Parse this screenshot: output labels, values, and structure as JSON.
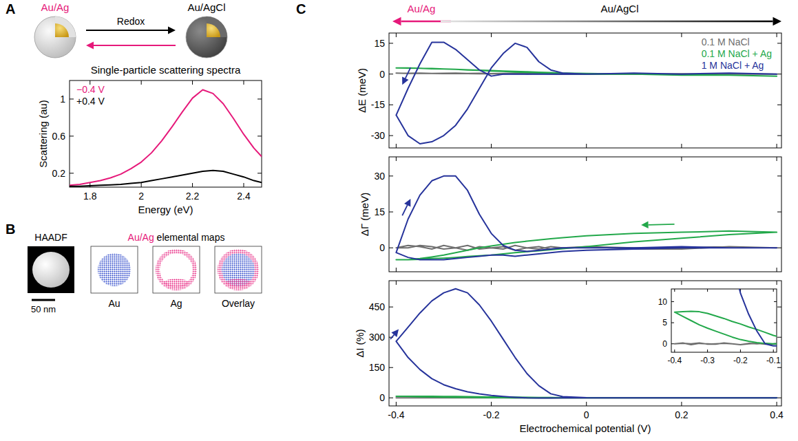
{
  "panel_labels": [
    "A",
    "B",
    "C"
  ],
  "schematic": {
    "left_label": "Au/Ag",
    "right_label": "Au/AgCl",
    "arrow_label": "Redox"
  },
  "micrographs": {
    "title": "HAADF",
    "maps_title": "Au/Ag elemental maps",
    "map_labels": [
      "Au",
      "Ag",
      "Overlay"
    ],
    "scale_bar": "50 nm"
  },
  "sweep_direction": {
    "left": "Au/Ag",
    "right": "Au/AgCl"
  },
  "chart_data": [
    {
      "type": "line",
      "title": "Single-particle scattering spectra",
      "xlabel": "Energy (eV)",
      "ylabel": "Scattering (au)",
      "x": [
        1.72,
        1.76,
        1.8,
        1.84,
        1.88,
        1.92,
        1.96,
        2,
        2.04,
        2.08,
        2.12,
        2.16,
        2.2,
        2.24,
        2.28,
        2.32,
        2.36,
        2.4,
        2.44,
        2.47
      ],
      "series": [
        {
          "name": "−0.4 V",
          "color": "#e6197a",
          "values": [
            0.07,
            0.08,
            0.1,
            0.12,
            0.15,
            0.19,
            0.25,
            0.32,
            0.42,
            0.55,
            0.7,
            0.86,
            1.01,
            1.1,
            1.06,
            0.95,
            0.79,
            0.62,
            0.47,
            0.38
          ]
        },
        {
          "name": "+0.4 V",
          "color": "#000000",
          "values": [
            0.06,
            0.06,
            0.065,
            0.07,
            0.075,
            0.08,
            0.09,
            0.1,
            0.12,
            0.14,
            0.16,
            0.18,
            0.2,
            0.22,
            0.23,
            0.22,
            0.19,
            0.16,
            0.12,
            0.1
          ]
        }
      ],
      "xlim": [
        1.72,
        2.47
      ],
      "ylim": [
        0.05,
        1.2
      ],
      "xticks": [
        1.8,
        2,
        2.2,
        2.4
      ],
      "yticks": [
        0.2,
        0.6,
        1
      ],
      "legend": "upper left"
    },
    {
      "type": "line",
      "ylabel": "ΔE (meV)",
      "x": [
        -0.4,
        -0.375,
        -0.35,
        -0.325,
        -0.3,
        -0.275,
        -0.25,
        -0.225,
        -0.2,
        -0.175,
        -0.15,
        -0.125,
        -0.1,
        -0.075,
        -0.05,
        0,
        0.1,
        0.2,
        0.3,
        0.4,
        0.3,
        0.2,
        0.1,
        0,
        -0.05,
        -0.075,
        -0.1,
        -0.125,
        -0.15,
        -0.175,
        -0.2,
        -0.225,
        -0.25,
        -0.275,
        -0.3,
        -0.325,
        -0.35,
        -0.375,
        -0.4
      ],
      "series": [
        {
          "name": "0.1 M NaCl",
          "color": "#6e6e6e",
          "values": [
            0.5,
            0.4,
            0.5,
            0.3,
            0.4,
            0.5,
            0.3,
            0.4,
            0.2,
            0.3,
            0.4,
            0.3,
            0.2,
            0.3,
            0.2,
            0.2,
            0.1,
            0,
            0.1,
            0,
            0,
            0.1,
            0,
            0,
            -0.1,
            0,
            0.1,
            0,
            0.1,
            0,
            0.2,
            0.1,
            0.2,
            0.3,
            0.2,
            0.3,
            0.4,
            0.3,
            0.5
          ]
        },
        {
          "name": "0.1 M NaCl + Ag",
          "color": "#22a84a",
          "values": [
            3,
            3,
            2.8,
            2.6,
            2.5,
            2.3,
            2,
            1.8,
            1.5,
            1.3,
            1,
            0.8,
            0.6,
            0.4,
            0.2,
            0,
            0,
            -0.5,
            -0.5,
            -1,
            -0.5,
            -0.3,
            0,
            0.3,
            0.5,
            0.7,
            0.9,
            1.1,
            1.3,
            1.5,
            1.7,
            1.9,
            2.1,
            2.3,
            2.5,
            2.7,
            2.8,
            2.9,
            3
          ]
        },
        {
          "name": "1 M NaCl + Ag",
          "color": "#26339b",
          "values": [
            -20,
            -30,
            -34,
            -33,
            -30,
            -25,
            -17,
            -7,
            3,
            10,
            15,
            13,
            6,
            2,
            0.5,
            0,
            0.5,
            0,
            0.5,
            0,
            0.5,
            0,
            0.5,
            0,
            0,
            0,
            0,
            0,
            0,
            0,
            -1,
            2,
            7,
            12,
            15.5,
            15.5,
            5,
            -7,
            -20
          ]
        }
      ],
      "xlim": [
        -0.415,
        0.41
      ],
      "ylim": [
        -36,
        20
      ],
      "xticks": [
        -0.4,
        -0.2,
        0,
        0.2,
        0.4
      ],
      "yticks": [
        -30,
        -15,
        0,
        15
      ],
      "legend": "upper right",
      "tick_labels": "y"
    },
    {
      "type": "line",
      "ylabel": "ΔΓ (meV)",
      "x": [
        -0.4,
        -0.375,
        -0.35,
        -0.325,
        -0.3,
        -0.275,
        -0.25,
        -0.225,
        -0.2,
        -0.175,
        -0.15,
        -0.125,
        -0.1,
        -0.075,
        -0.05,
        0,
        0.1,
        0.2,
        0.3,
        0.4,
        0.3,
        0.2,
        0.1,
        0,
        -0.05,
        -0.075,
        -0.1,
        -0.125,
        -0.15,
        -0.175,
        -0.2,
        -0.225,
        -0.25,
        -0.275,
        -0.3,
        -0.325,
        -0.35,
        -0.375,
        -0.4
      ],
      "series": [
        {
          "color": "#6e6e6e",
          "values": [
            0,
            1,
            0.5,
            -0.5,
            1,
            0,
            -1,
            0.5,
            0,
            -0.5,
            1,
            0,
            -0.5,
            0.5,
            0,
            0.5,
            -0.5,
            0,
            0.5,
            0,
            0.5,
            -0.5,
            0,
            0.5,
            0,
            -0.5,
            0.5,
            0,
            -1,
            0.5,
            0,
            -0.5,
            1,
            0,
            -0.5,
            0.5,
            1,
            0,
            0
          ]
        },
        {
          "color": "#22a84a",
          "values": [
            -5,
            -5,
            -4.8,
            -4.5,
            -4.3,
            -4,
            -3.6,
            -3.3,
            -3,
            -2.5,
            -2,
            -1.6,
            -1.2,
            -0.8,
            -0.4,
            0.5,
            2.5,
            4,
            5.5,
            6.5,
            7,
            6.5,
            6,
            5,
            4.2,
            3.8,
            3.3,
            2.8,
            2.2,
            1.5,
            0.8,
            0,
            -1,
            -2,
            -3,
            -3.8,
            -4.5,
            -5,
            -5
          ]
        },
        {
          "color": "#26339b",
          "values": [
            -2,
            12,
            22,
            28,
            30,
            30,
            24,
            14,
            6,
            1,
            -1,
            -1.5,
            -1,
            -0.5,
            0,
            0,
            0,
            0.5,
            0,
            0,
            0,
            0,
            -0.5,
            -1,
            -1.5,
            -2,
            -2.5,
            -3,
            -3.5,
            -3,
            -3,
            -3.5,
            -4,
            -4.5,
            -5,
            -5,
            -5,
            -4,
            -2
          ]
        }
      ],
      "xlim": [
        -0.415,
        0.41
      ],
      "ylim": [
        -10,
        38
      ],
      "xticks": [
        -0.4,
        -0.2,
        0,
        0.2,
        0.4
      ],
      "yticks": [
        0,
        15,
        30
      ],
      "tick_labels": "y"
    },
    {
      "type": "line",
      "xlabel": "Electrochemical potential (V)",
      "ylabel": "ΔI (%)",
      "x": [
        -0.4,
        -0.375,
        -0.35,
        -0.325,
        -0.3,
        -0.275,
        -0.25,
        -0.225,
        -0.2,
        -0.175,
        -0.15,
        -0.125,
        -0.1,
        -0.075,
        -0.05,
        0,
        0.1,
        0.2,
        0.3,
        0.4,
        0.3,
        0.2,
        0.1,
        0,
        -0.05,
        -0.075,
        -0.1,
        -0.125,
        -0.15,
        -0.175,
        -0.2,
        -0.225,
        -0.25,
        -0.275,
        -0.3,
        -0.325,
        -0.35,
        -0.375,
        -0.4
      ],
      "series": [
        {
          "color": "#6e6e6e",
          "values": [
            0,
            0.2,
            -0.2,
            0.1,
            0,
            -0.1,
            0.2,
            0,
            -0.2,
            0.1,
            0,
            0.1,
            -0.1,
            0,
            0.2,
            0,
            -0.1,
            0,
            0.1,
            0,
            0,
            0.1,
            0,
            -0.1,
            0,
            0.2,
            0,
            -0.1,
            0.1,
            0,
            -0.2,
            0,
            0.1,
            0,
            -0.1,
            0.2,
            0,
            0.1,
            0
          ]
        },
        {
          "color": "#22a84a",
          "values": [
            7.5,
            6.5,
            5.5,
            4.5,
            3.7,
            3,
            2.3,
            1.6,
            1,
            0.6,
            0.3,
            0.1,
            0,
            0,
            0,
            0,
            0,
            0,
            0,
            0,
            0,
            0,
            0.2,
            0.5,
            1,
            1.5,
            2,
            2.7,
            3.4,
            4,
            4.7,
            5.3,
            6,
            6.6,
            7.2,
            7.6,
            7.7,
            7.6,
            7.5
          ]
        },
        {
          "color": "#26339b",
          "values": [
            280,
            350,
            420,
            480,
            520,
            540,
            520,
            460,
            380,
            290,
            200,
            120,
            60,
            20,
            6,
            1,
            0,
            0,
            0,
            0,
            0,
            0,
            0,
            0,
            0,
            -0.5,
            -0.5,
            0,
            3,
            7,
            12,
            20,
            30,
            45,
            65,
            95,
            140,
            200,
            280
          ]
        }
      ],
      "xlim": [
        -0.415,
        0.41
      ],
      "ylim": [
        -40,
        580
      ],
      "xticks": [
        -0.4,
        -0.2,
        0,
        0.2,
        0.4
      ],
      "yticks": [
        0,
        150,
        300,
        450
      ],
      "inset": {
        "xlim": [
          -0.41,
          -0.09
        ],
        "ylim": [
          -2,
          13
        ],
        "xticks": [
          -0.4,
          -0.3,
          -0.2,
          -0.1
        ],
        "yticks": [
          0,
          5,
          10
        ]
      }
    }
  ]
}
